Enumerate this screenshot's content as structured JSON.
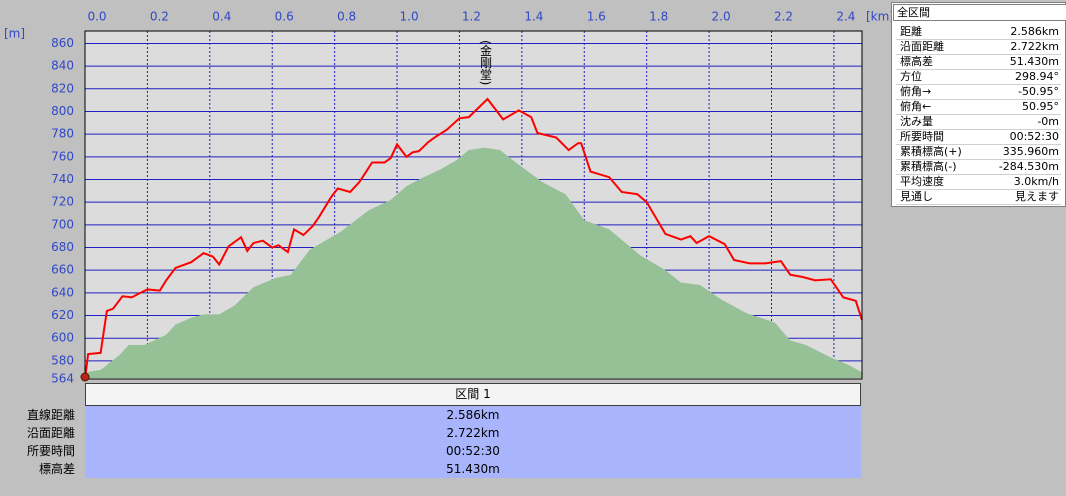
{
  "chart_data": {
    "type": "line",
    "x_label": "[km]",
    "y_label": "[m]",
    "annotation": "(金剛堂)",
    "annotation_x": 1.29,
    "xlim": [
      0,
      2.49
    ],
    "ylim": [
      564,
      871
    ],
    "xticks": [
      {
        "value": 0,
        "label": "0.0"
      },
      0.2,
      0.4,
      0.6,
      0.8,
      {
        "value": 1,
        "label": "1.0"
      },
      1.2,
      1.4,
      1.6,
      1.8,
      {
        "value": 2,
        "label": "2.0"
      },
      2.2,
      2.4
    ],
    "yticks": [
      564,
      580,
      600,
      620,
      640,
      660,
      680,
      700,
      720,
      740,
      760,
      780,
      800,
      820,
      840,
      860
    ],
    "grid": true,
    "series": [
      {
        "kind": "area",
        "color": "#96c096",
        "x": [
          0,
          0.05,
          0.11,
          0.14,
          0.19,
          0.26,
          0.29,
          0.34,
          0.38,
          0.43,
          0.48,
          0.54,
          0.61,
          0.66,
          0.72,
          0.82,
          0.91,
          0.98,
          1.03,
          1.07,
          1.14,
          1.19,
          1.23,
          1.28,
          1.33,
          1.39,
          1.47,
          1.54,
          1.6,
          1.68,
          1.78,
          1.86,
          1.91,
          1.97,
          2.04,
          2.12,
          2.21,
          2.26,
          2.31,
          2.39,
          2.45,
          2.49
        ],
        "values": [
          570,
          572,
          585,
          594,
          594,
          603,
          612,
          618,
          621,
          621,
          629,
          645,
          653,
          656,
          678,
          694,
          713,
          722,
          734,
          740,
          749,
          757,
          766,
          768,
          766,
          753,
          737,
          727,
          704,
          696,
          673,
          660,
          649,
          647,
          634,
          622,
          614,
          598,
          594,
          583,
          576,
          570
        ]
      },
      {
        "kind": "line",
        "color": "#ff0000",
        "x": [
          0,
          0.01,
          0.05,
          0.07,
          0.09,
          0.12,
          0.15,
          0.17,
          0.2,
          0.24,
          0.26,
          0.29,
          0.34,
          0.38,
          0.41,
          0.43,
          0.46,
          0.5,
          0.52,
          0.54,
          0.57,
          0.6,
          0.62,
          0.65,
          0.67,
          0.7,
          0.73,
          0.75,
          0.79,
          0.81,
          0.85,
          0.88,
          0.92,
          0.96,
          0.98,
          1.0,
          1.03,
          1.05,
          1.07,
          1.1,
          1.12,
          1.16,
          1.2,
          1.23,
          1.29,
          1.34,
          1.39,
          1.43,
          1.45,
          1.51,
          1.55,
          1.58,
          1.59,
          1.62,
          1.68,
          1.72,
          1.77,
          1.8,
          1.86,
          1.91,
          1.94,
          1.96,
          2.0,
          2.05,
          2.08,
          2.13,
          2.18,
          2.23,
          2.26,
          2.3,
          2.34,
          2.39,
          2.43,
          2.47,
          2.49
        ],
        "values": [
          564,
          586,
          587,
          624,
          626,
          637,
          636,
          639,
          643,
          642,
          651,
          662,
          667,
          675,
          672,
          665,
          681,
          689,
          677,
          684,
          686,
          680,
          682,
          676,
          696,
          691,
          699,
          707,
          725,
          732,
          729,
          738,
          755,
          755,
          759,
          771,
          760,
          764,
          765,
          773,
          777,
          784,
          794,
          795,
          811,
          793,
          801,
          795,
          781,
          777,
          766,
          772,
          772,
          747,
          742,
          729,
          727,
          720,
          692,
          687,
          690,
          684,
          690,
          683,
          669,
          666,
          666,
          668,
          656,
          654,
          651,
          652,
          636,
          633,
          616
        ]
      }
    ]
  },
  "summary": {
    "title": "全区間",
    "rows": [
      [
        "距離",
        "2.586km"
      ],
      [
        "沿面距離",
        "2.722km"
      ],
      [
        "標高差",
        "51.430m"
      ],
      [
        "方位",
        "298.94°"
      ],
      [
        "俯角→",
        "-50.95°"
      ],
      [
        "俯角←",
        "50.95°"
      ],
      [
        "沈み量",
        "-0m"
      ],
      [
        "所要時間",
        "00:52:30"
      ],
      [
        "累積標高(+)",
        "335.960m"
      ],
      [
        "累積標高(-)",
        "-284.530m"
      ],
      [
        "平均速度",
        "3.0km/h"
      ],
      [
        "見通し",
        "見えます"
      ]
    ]
  },
  "section": {
    "title": "区間 1",
    "rows": [
      [
        "直線距離",
        "2.586km"
      ],
      [
        "沿面距離",
        "2.722km"
      ],
      [
        "所要時間",
        "00:52:30"
      ],
      [
        "標高差",
        "51.430m"
      ]
    ]
  }
}
